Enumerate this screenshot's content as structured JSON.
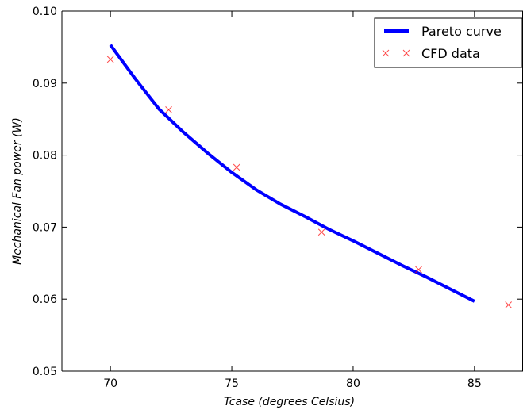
{
  "chart_data": {
    "type": "line",
    "xlabel": "Tcase (degrees Celsius)",
    "ylabel": "Mechanical Fan power (W)",
    "xlim": [
      68,
      87
    ],
    "ylim": [
      0.05,
      0.1
    ],
    "x_ticks": [
      70,
      75,
      80,
      85
    ],
    "x_tick_labels": [
      "70",
      "75",
      "80",
      "85"
    ],
    "y_ticks": [
      0.05,
      0.06,
      0.07,
      0.08,
      0.09,
      0.1
    ],
    "y_tick_labels": [
      "0.05",
      "0.06",
      "0.07",
      "0.08",
      "0.09",
      "0.10"
    ],
    "grid": false,
    "legend": "top-right",
    "series": [
      {
        "name": "Pareto curve",
        "kind": "line",
        "color": "#0000ff",
        "x": [
          70,
          71,
          72,
          73,
          74,
          75,
          76,
          77,
          78,
          79,
          80,
          81,
          82,
          83,
          84,
          85
        ],
        "y": [
          0.0953,
          0.0907,
          0.0864,
          0.0832,
          0.0803,
          0.0776,
          0.0752,
          0.0732,
          0.0715,
          0.0697,
          0.0681,
          0.0664,
          0.0647,
          0.0631,
          0.0614,
          0.0597
        ]
      },
      {
        "name": "CFD data",
        "kind": "scatter",
        "marker": "x",
        "color": "#ff0000",
        "x": [
          70.0,
          72.4,
          75.2,
          78.7,
          82.7,
          86.4
        ],
        "y": [
          0.0933,
          0.0863,
          0.0783,
          0.0693,
          0.0641,
          0.0592
        ]
      }
    ]
  }
}
